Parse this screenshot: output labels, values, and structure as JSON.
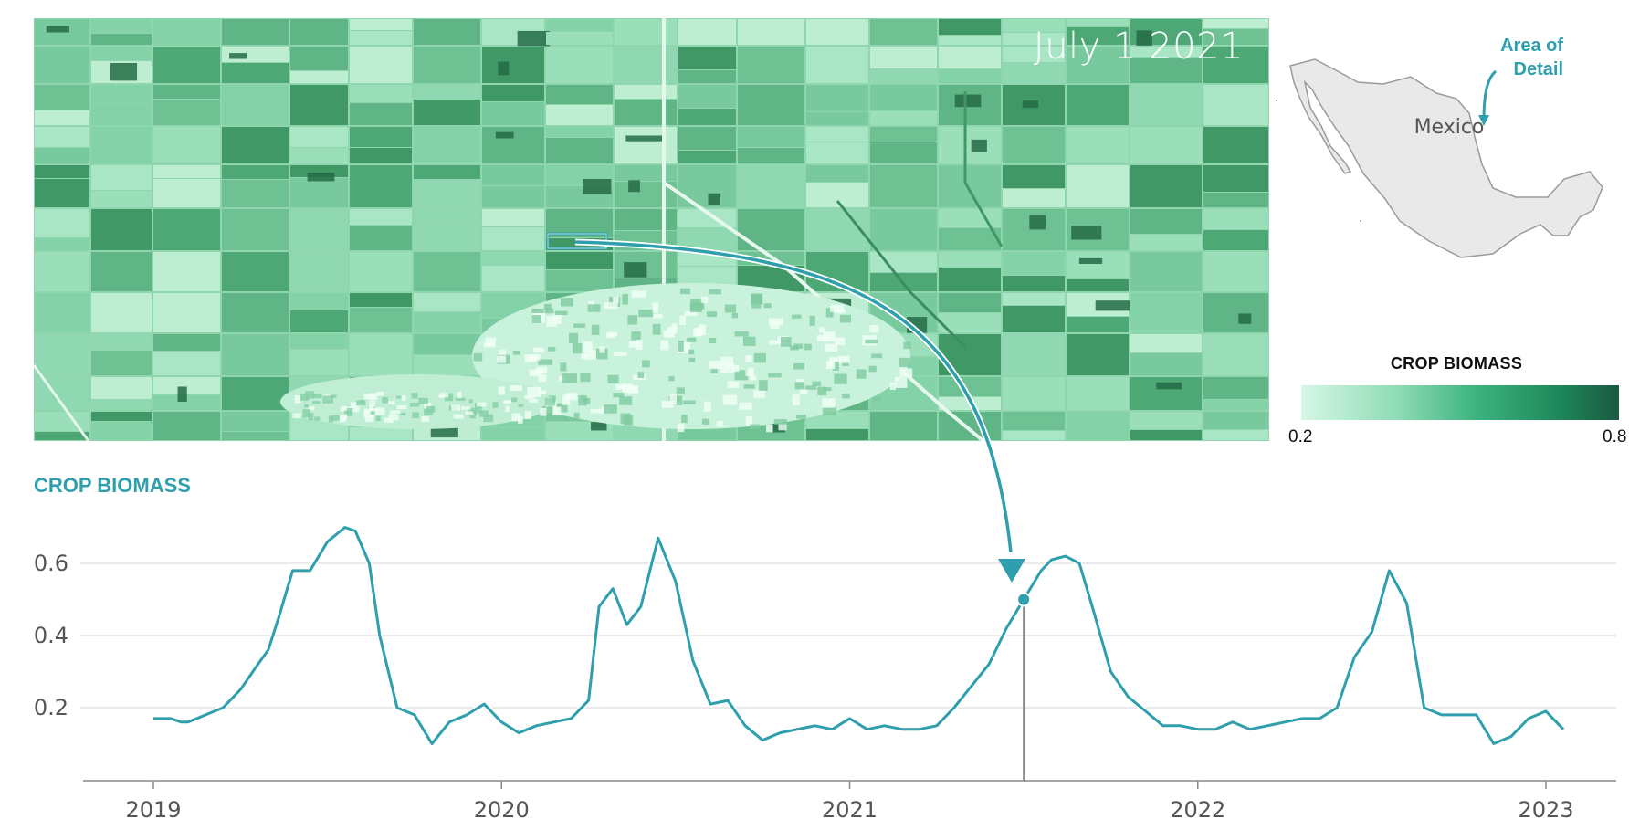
{
  "satellite": {
    "date_label": "July 1 2021"
  },
  "minimap": {
    "country_label": "Mexico",
    "detail_label_line1": "Area of",
    "detail_label_line2": "Detail"
  },
  "scale": {
    "title": "CROP BIOMASS",
    "min_label": "0.2",
    "max_label": "0.8"
  },
  "colors": {
    "accent": "#2f9fae",
    "field_light": "#b7ecd0",
    "field_dark": "#2c7d55",
    "map_fill": "#e9e9e9",
    "map_stroke": "#9a9a9a"
  },
  "chart_data": {
    "type": "line",
    "title": "CROP BIOMASS",
    "xlabel": "",
    "ylabel": "",
    "x_ticks": [
      "2019",
      "2020",
      "2021",
      "2022",
      "2023"
    ],
    "y_ticks": [
      "0.2",
      "0.4",
      "0.6"
    ],
    "xlim": [
      2018.8,
      2023.2
    ],
    "ylim": [
      0.0,
      0.72
    ],
    "grid": "horizontal",
    "marker": {
      "x": 2021.5,
      "y": 0.5
    },
    "series": [
      {
        "x": [
          2019.0,
          2019.05,
          2019.08,
          2019.1,
          2019.15,
          2019.2,
          2019.25,
          2019.3,
          2019.33,
          2019.36,
          2019.4,
          2019.45,
          2019.5,
          2019.55,
          2019.58,
          2019.62,
          2019.65,
          2019.7,
          2019.75,
          2019.8,
          2019.85,
          2019.9,
          2019.95,
          2020.0,
          2020.05,
          2020.1,
          2020.15,
          2020.2,
          2020.25,
          2020.28,
          2020.32,
          2020.36,
          2020.4,
          2020.45,
          2020.5,
          2020.55,
          2020.6,
          2020.65,
          2020.7,
          2020.75,
          2020.8,
          2020.85,
          2020.9,
          2020.95,
          2021.0,
          2021.05,
          2021.1,
          2021.15,
          2021.2,
          2021.25,
          2021.3,
          2021.35,
          2021.4,
          2021.45,
          2021.5,
          2021.55,
          2021.58,
          2021.62,
          2021.66,
          2021.7,
          2021.75,
          2021.8,
          2021.85,
          2021.9,
          2021.95,
          2022.0,
          2022.05,
          2022.1,
          2022.15,
          2022.2,
          2022.25,
          2022.3,
          2022.35,
          2022.4,
          2022.45,
          2022.5,
          2022.55,
          2022.6,
          2022.65,
          2022.7,
          2022.75,
          2022.8,
          2022.85,
          2022.9,
          2022.95,
          2023.0,
          2023.05
        ],
        "values": [
          0.17,
          0.17,
          0.16,
          0.16,
          0.18,
          0.2,
          0.25,
          0.32,
          0.36,
          0.45,
          0.58,
          0.58,
          0.66,
          0.7,
          0.69,
          0.6,
          0.4,
          0.2,
          0.18,
          0.1,
          0.16,
          0.18,
          0.21,
          0.16,
          0.13,
          0.15,
          0.16,
          0.17,
          0.22,
          0.48,
          0.53,
          0.43,
          0.48,
          0.67,
          0.55,
          0.33,
          0.21,
          0.22,
          0.15,
          0.11,
          0.13,
          0.14,
          0.15,
          0.14,
          0.17,
          0.14,
          0.15,
          0.14,
          0.14,
          0.15,
          0.2,
          0.26,
          0.32,
          0.42,
          0.5,
          0.58,
          0.61,
          0.62,
          0.6,
          0.47,
          0.3,
          0.23,
          0.19,
          0.15,
          0.15,
          0.14,
          0.14,
          0.16,
          0.14,
          0.15,
          0.16,
          0.17,
          0.17,
          0.2,
          0.34,
          0.41,
          0.58,
          0.49,
          0.2,
          0.18,
          0.18,
          0.18,
          0.1,
          0.12,
          0.17,
          0.19,
          0.14
        ]
      }
    ]
  }
}
